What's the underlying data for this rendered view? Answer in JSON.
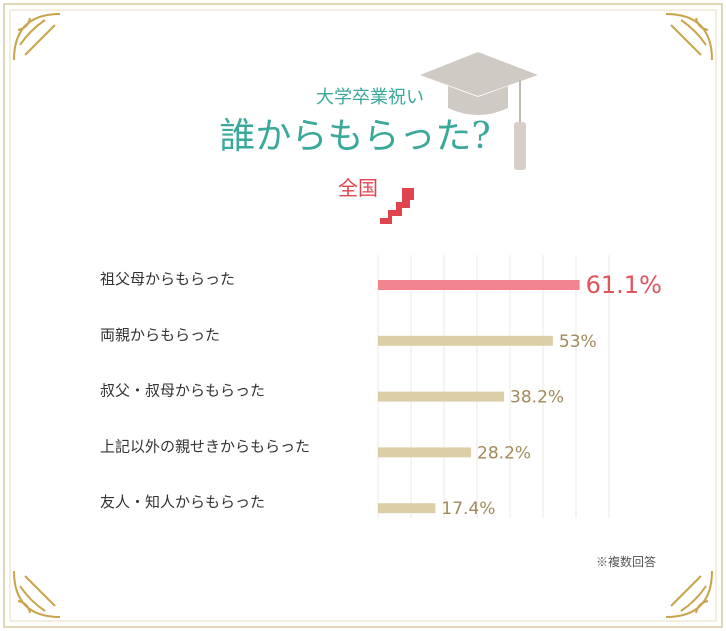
{
  "chart_data": {
    "type": "bar",
    "orientation": "horizontal",
    "subtitle": "大学卒業祝い",
    "title": "誰からもらった?",
    "region": "全国",
    "categories": [
      "祖父母からもらった",
      "両親からもらった",
      "叔父・叔母からもらった",
      "上記以外の親せきからもらった",
      "友人・知人からもらった"
    ],
    "values": [
      61.1,
      53,
      38.2,
      28.2,
      17.4
    ],
    "value_labels": [
      "61.1%",
      "53%",
      "38.2%",
      "28.2%",
      "17.4%"
    ],
    "colors": [
      "#f2848f",
      "#dccfa8",
      "#dccfa8",
      "#dccfa8",
      "#dccfa8"
    ],
    "xlim": [
      0,
      70
    ],
    "xticks": [
      0,
      10,
      20,
      30,
      40,
      50,
      60,
      70
    ],
    "grid": true,
    "note": "※複数回答"
  }
}
